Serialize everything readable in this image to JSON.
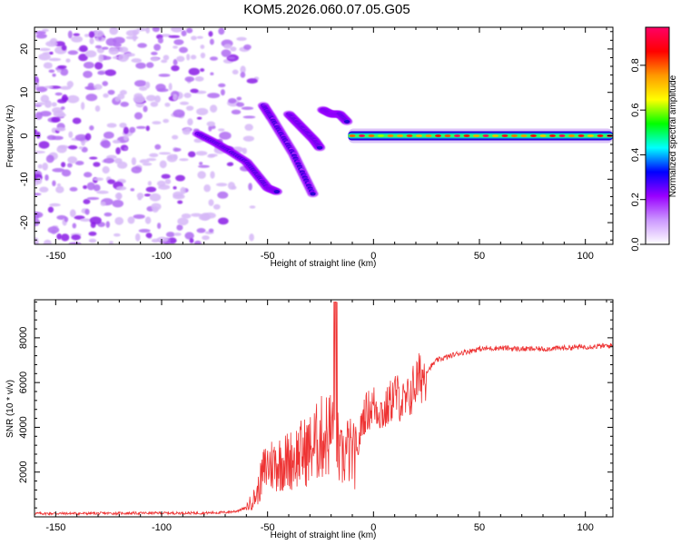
{
  "title": "KOM5.2026.060.07.05.G05",
  "chart_data": [
    {
      "type": "heatmap",
      "xlabel": "Height of straight line (km)",
      "ylabel": "Frequency (Hz)",
      "xlim": [
        -160,
        113
      ],
      "ylim": [
        -25,
        25
      ],
      "xticks": [
        -150,
        -100,
        -50,
        0,
        50,
        100
      ],
      "yticks": [
        -20,
        -10,
        0,
        10,
        20
      ],
      "colorbar": {
        "label": "Normalized spectral amplitude",
        "range": [
          0.0,
          0.97
        ],
        "ticks": [
          0.0,
          0.2,
          0.4,
          0.6,
          0.8
        ],
        "tick_labels": [
          "0.0",
          "0.2",
          "0.4",
          "0.6",
          "0.8"
        ],
        "colormap": [
          "#ffffff",
          "#cc99ff",
          "#9900ff",
          "#0000ff",
          "#00ffff",
          "#00ff00",
          "#ffff00",
          "#ff9900",
          "#ff0000",
          "#ff0066"
        ]
      },
      "features": [
        {
          "name": "scattered noise",
          "x_range": [
            -160,
            -55
          ],
          "freq_range": [
            -25,
            25
          ],
          "amplitude": 0.05
        },
        {
          "name": "descending trace 1",
          "x": [
            -83,
            -75,
            -68,
            -60,
            -55,
            -50,
            -45
          ],
          "freq": [
            0.5,
            -1.5,
            -3.5,
            -6,
            -9,
            -12,
            -13
          ],
          "amplitude": 0.25
        },
        {
          "name": "descending trace 2",
          "x": [
            -52,
            -48,
            -43,
            -38,
            -33,
            -28
          ],
          "freq": [
            7,
            4,
            0,
            -4,
            -9,
            -14
          ],
          "amplitude": 0.2
        },
        {
          "name": "descending trace 3",
          "x": [
            -40,
            -36,
            -32,
            -28,
            -25
          ],
          "freq": [
            5,
            3,
            1,
            -1,
            -3
          ],
          "amplitude": 0.15
        },
        {
          "name": "tone segment",
          "x": [
            -24,
            -20,
            -16,
            -12
          ],
          "freq": [
            6,
            5,
            5,
            3
          ],
          "amplitude": 0.3
        },
        {
          "name": "steady tone near 0 Hz",
          "x_range": [
            -12,
            113
          ],
          "freq": 0,
          "amplitude": 0.8
        }
      ]
    },
    {
      "type": "line",
      "xlabel": "Height of straight line (km)",
      "ylabel": "SNR (10 * v/v)",
      "xlim": [
        -160,
        113
      ],
      "ylim": [
        0,
        9700
      ],
      "xticks": [
        -150,
        -100,
        -50,
        0,
        50,
        100
      ],
      "yticks": [
        2000,
        4000,
        6000,
        8000
      ],
      "color": "#ee3333",
      "series": [
        {
          "name": "SNR",
          "x": [
            -160,
            -140,
            -120,
            -100,
            -80,
            -70,
            -65,
            -60,
            -55,
            -52,
            -50,
            -45,
            -40,
            -35,
            -30,
            -25,
            -20,
            -18,
            -16,
            -12,
            -8,
            -5,
            0,
            5,
            10,
            15,
            20,
            25,
            30,
            40,
            50,
            60,
            70,
            80,
            90,
            100,
            113
          ],
          "values": [
            150,
            150,
            160,
            170,
            170,
            200,
            250,
            400,
            1000,
            2000,
            2300,
            2400,
            2500,
            2800,
            3000,
            3500,
            3800,
            4000,
            2500,
            3000,
            2600,
            4500,
            5000,
            4600,
            5500,
            5000,
            6000,
            6500,
            7000,
            7300,
            7500,
            7550,
            7500,
            7500,
            7550,
            7600,
            7650
          ]
        }
      ]
    }
  ]
}
